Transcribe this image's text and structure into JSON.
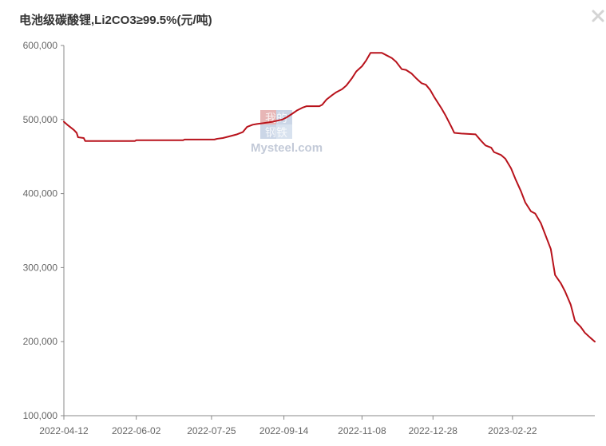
{
  "title": "电池级碳酸锂,Li2CO3≥99.5%(元/吨)",
  "icons": {
    "close": "close-icon"
  },
  "watermark": {
    "cn_top": "我的",
    "cn_bottom": "钢铁",
    "brand": "Mysteel.com"
  },
  "colors": {
    "line": "#b8121b",
    "axis": "#888888",
    "text": "#666666",
    "title": "#333333"
  },
  "chart_data": {
    "type": "line",
    "title": "电池级碳酸锂,Li2CO3≥99.5%(元/吨)",
    "xlabel": "",
    "ylabel": "",
    "x_ticks": [
      "2022-04-12",
      "2022-06-02",
      "2022-07-25",
      "2022-09-14",
      "2022-11-08",
      "2022-12-28",
      "2023-02-22"
    ],
    "y_ticks": [
      "100,000",
      "200,000",
      "300,000",
      "400,000",
      "500,000",
      "600,000"
    ],
    "ylim": [
      100000,
      600000
    ],
    "xlim": [
      "2022-04-12",
      "2023-04-21"
    ],
    "grid": false,
    "legend": "none",
    "series": [
      {
        "points": [
          [
            "2022-04-12",
            497000
          ],
          [
            "2022-04-15",
            492000
          ],
          [
            "2022-04-19",
            486000
          ],
          [
            "2022-04-21",
            482000
          ],
          [
            "2022-04-22",
            476000
          ],
          [
            "2022-04-26",
            475000
          ],
          [
            "2022-04-27",
            471000
          ],
          [
            "2022-05-01",
            471000
          ],
          [
            "2022-05-20",
            471000
          ],
          [
            "2022-06-01",
            471000
          ],
          [
            "2022-06-02",
            472000
          ],
          [
            "2022-06-24",
            472000
          ],
          [
            "2022-07-05",
            472000
          ],
          [
            "2022-07-06",
            473000
          ],
          [
            "2022-07-27",
            473000
          ],
          [
            "2022-07-29",
            474000
          ],
          [
            "2022-08-02",
            475000
          ],
          [
            "2022-08-08",
            478000
          ],
          [
            "2022-08-12",
            480000
          ],
          [
            "2022-08-16",
            483000
          ],
          [
            "2022-08-19",
            490000
          ],
          [
            "2022-08-23",
            493000
          ],
          [
            "2022-08-26",
            494000
          ],
          [
            "2022-08-30",
            495000
          ],
          [
            "2022-09-06",
            497000
          ],
          [
            "2022-09-13",
            500000
          ],
          [
            "2022-09-16",
            503000
          ],
          [
            "2022-09-20",
            508000
          ],
          [
            "2022-09-23",
            512000
          ],
          [
            "2022-09-27",
            516000
          ],
          [
            "2022-09-30",
            518000
          ],
          [
            "2022-10-09",
            518000
          ],
          [
            "2022-10-11",
            520000
          ],
          [
            "2022-10-14",
            527000
          ],
          [
            "2022-10-18",
            533000
          ],
          [
            "2022-10-21",
            537000
          ],
          [
            "2022-10-25",
            541000
          ],
          [
            "2022-10-28",
            546000
          ],
          [
            "2022-11-01",
            556000
          ],
          [
            "2022-11-04",
            565000
          ],
          [
            "2022-11-08",
            572000
          ],
          [
            "2022-11-11",
            580000
          ],
          [
            "2022-11-14",
            590000
          ],
          [
            "2022-11-18",
            590000
          ],
          [
            "2022-11-22",
            590000
          ],
          [
            "2022-11-25",
            587000
          ],
          [
            "2022-11-29",
            583000
          ],
          [
            "2022-12-02",
            578000
          ],
          [
            "2022-12-06",
            568000
          ],
          [
            "2022-12-09",
            567000
          ],
          [
            "2022-12-13",
            562000
          ],
          [
            "2022-12-16",
            556000
          ],
          [
            "2022-12-20",
            549000
          ],
          [
            "2022-12-23",
            547000
          ],
          [
            "2022-12-26",
            540000
          ],
          [
            "2022-12-29",
            530000
          ],
          [
            "2023-01-03",
            515000
          ],
          [
            "2023-01-06",
            505000
          ],
          [
            "2023-01-10",
            490000
          ],
          [
            "2023-01-12",
            482000
          ],
          [
            "2023-01-17",
            481000
          ],
          [
            "2023-01-27",
            480000
          ],
          [
            "2023-01-31",
            471000
          ],
          [
            "2023-02-03",
            465000
          ],
          [
            "2023-02-07",
            462000
          ],
          [
            "2023-02-09",
            456000
          ],
          [
            "2023-02-14",
            452000
          ],
          [
            "2023-02-17",
            447000
          ],
          [
            "2023-02-21",
            434000
          ],
          [
            "2023-02-24",
            420000
          ],
          [
            "2023-02-28",
            403000
          ],
          [
            "2023-03-03",
            388000
          ],
          [
            "2023-03-07",
            376000
          ],
          [
            "2023-03-10",
            373000
          ],
          [
            "2023-03-14",
            360000
          ],
          [
            "2023-03-17",
            345000
          ],
          [
            "2023-03-21",
            325000
          ],
          [
            "2023-03-24",
            290000
          ],
          [
            "2023-03-28",
            279000
          ],
          [
            "2023-03-31",
            268000
          ],
          [
            "2023-04-04",
            250000
          ],
          [
            "2023-04-07",
            228000
          ],
          [
            "2023-04-11",
            220000
          ],
          [
            "2023-04-14",
            212000
          ],
          [
            "2023-04-18",
            205000
          ],
          [
            "2023-04-21",
            200000
          ]
        ]
      }
    ]
  }
}
